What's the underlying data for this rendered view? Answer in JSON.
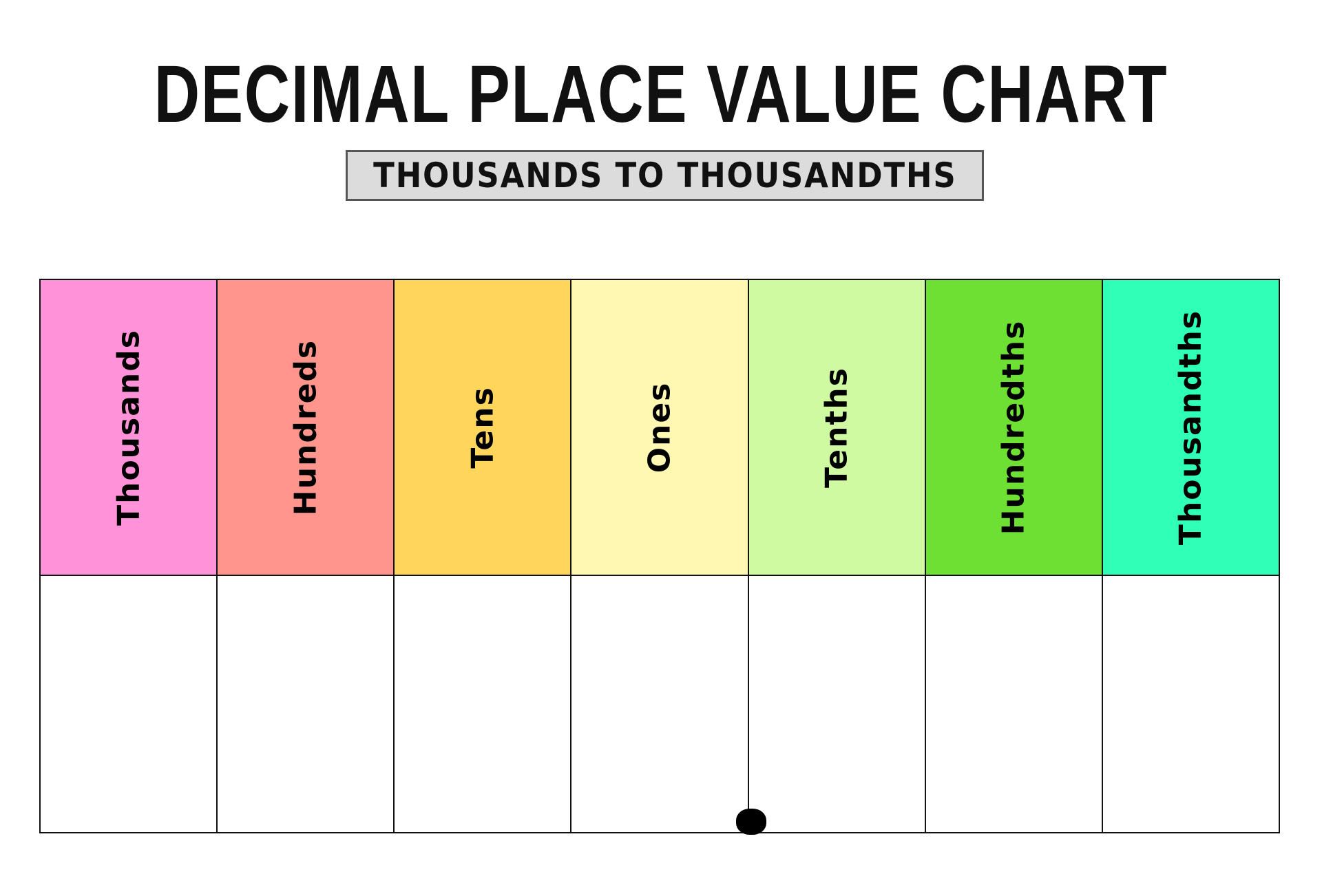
{
  "title": "DECIMAL PLACE VALUE CHART",
  "subtitle": "THOUSANDS TO THOUSANDTHS",
  "columns": [
    {
      "label": "Thousands",
      "color": "#FF92D8"
    },
    {
      "label": "Hundreds",
      "color": "#FF958D"
    },
    {
      "label": "Tens",
      "color": "#FFD65B"
    },
    {
      "label": "Ones",
      "color": "#FFF8B2"
    },
    {
      "label": "Tenths",
      "color": "#D0FAA2"
    },
    {
      "label": "Hundredths",
      "color": "#6EE034"
    },
    {
      "label": "Thousandths",
      "color": "#30FFB8"
    }
  ],
  "decimal_point_color": "#000000"
}
